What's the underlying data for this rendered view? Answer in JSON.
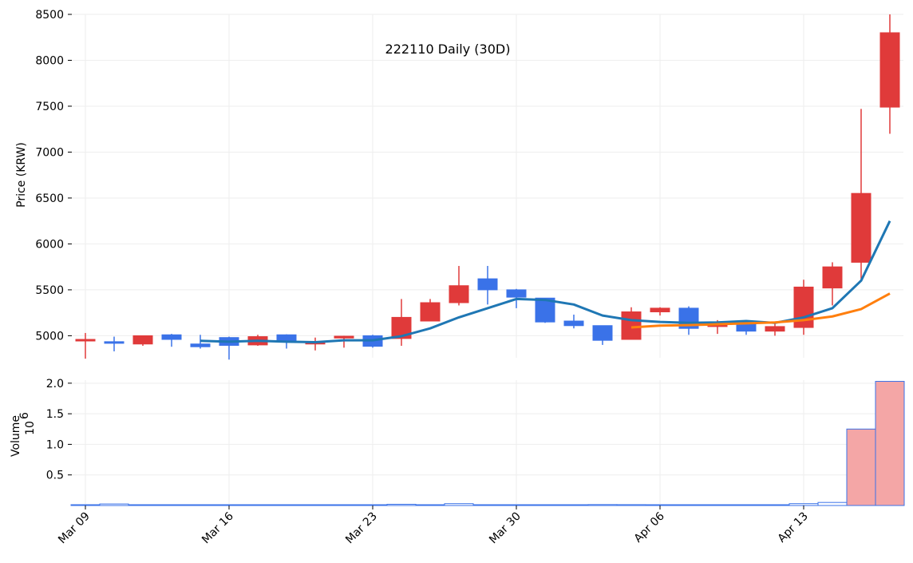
{
  "chart_data": {
    "type": "candlestick",
    "title": "222110 Daily (30D)",
    "ylabel": "Price (KRW)",
    "volume_label": "Volume",
    "volume_multiplier_label": "10",
    "volume_multiplier_exp": "6",
    "ylim": [
      4760,
      8500
    ],
    "volume_ylim": [
      0,
      2.05
    ],
    "price_ticks": [
      "5000",
      "5500",
      "6000",
      "6500",
      "7000",
      "7500",
      "8000",
      "8500"
    ],
    "volume_ticks": [
      "0.5",
      "1.0",
      "1.5",
      "2.0"
    ],
    "x_tick_labels": [
      "Mar 09",
      "Mar 16",
      "Mar 23",
      "Mar 30",
      "Apr 06",
      "Apr 13"
    ],
    "x_tick_index": [
      0,
      5,
      10,
      15,
      20,
      25
    ],
    "colors": {
      "up": "#e03a3a",
      "down": "#3a72e8",
      "ma5": "#1f77b4",
      "ma20": "#ff7f0e",
      "volume_last": "#f4a6a6",
      "grid": "#eeeeee"
    },
    "candles": [
      {
        "date": "Mar 09",
        "o": 4950,
        "h": 5030,
        "l": 4750,
        "c": 4960,
        "v": 0.01
      },
      {
        "date": "Mar 10",
        "o": 4935,
        "h": 4990,
        "l": 4830,
        "c": 4920,
        "v": 0.025
      },
      {
        "date": "Mar 11",
        "o": 4910,
        "h": 5000,
        "l": 4890,
        "c": 5000,
        "v": 0.008
      },
      {
        "date": "Mar 12",
        "o": 5010,
        "h": 5020,
        "l": 4880,
        "c": 4960,
        "v": 0.007
      },
      {
        "date": "Mar 13",
        "o": 4910,
        "h": 5010,
        "l": 4860,
        "c": 4880,
        "v": 0.006
      },
      {
        "date": "Mar 16",
        "o": 4980,
        "h": 4990,
        "l": 4740,
        "c": 4895,
        "v": 0.012
      },
      {
        "date": "Mar 17",
        "o": 4900,
        "h": 5010,
        "l": 4890,
        "c": 4990,
        "v": 0.008
      },
      {
        "date": "Mar 18",
        "o": 5010,
        "h": 5015,
        "l": 4860,
        "c": 4940,
        "v": 0.006
      },
      {
        "date": "Mar 19",
        "o": 4910,
        "h": 4980,
        "l": 4840,
        "c": 4930,
        "v": 0.005
      },
      {
        "date": "Mar 20",
        "o": 4975,
        "h": 5000,
        "l": 4870,
        "c": 4995,
        "v": 0.004
      },
      {
        "date": "Mar 23",
        "o": 5000,
        "h": 5010,
        "l": 4870,
        "c": 4885,
        "v": 0.005
      },
      {
        "date": "Mar 24",
        "o": 4970,
        "h": 5400,
        "l": 4890,
        "c": 5200,
        "v": 0.02
      },
      {
        "date": "Mar 25",
        "o": 5160,
        "h": 5400,
        "l": 5160,
        "c": 5360,
        "v": 0.01
      },
      {
        "date": "Mar 26",
        "o": 5360,
        "h": 5760,
        "l": 5330,
        "c": 5545,
        "v": 0.03
      },
      {
        "date": "Mar 27",
        "o": 5620,
        "h": 5760,
        "l": 5340,
        "c": 5500,
        "v": 0.012
      },
      {
        "date": "Mar 30",
        "o": 5500,
        "h": 5510,
        "l": 5300,
        "c": 5420,
        "v": 0.008
      },
      {
        "date": "Mar 31",
        "o": 5410,
        "h": 5410,
        "l": 5140,
        "c": 5150,
        "v": 0.01
      },
      {
        "date": "Apr 01",
        "o": 5160,
        "h": 5230,
        "l": 5080,
        "c": 5110,
        "v": 0.012
      },
      {
        "date": "Apr 02",
        "o": 5110,
        "h": 5110,
        "l": 4900,
        "c": 4950,
        "v": 0.015
      },
      {
        "date": "Apr 03",
        "o": 4960,
        "h": 5310,
        "l": 4960,
        "c": 5260,
        "v": 0.014
      },
      {
        "date": "Apr 06",
        "o": 5260,
        "h": 5310,
        "l": 5220,
        "c": 5300,
        "v": 0.006
      },
      {
        "date": "Apr 07",
        "o": 5300,
        "h": 5320,
        "l": 5010,
        "c": 5080,
        "v": 0.01
      },
      {
        "date": "Apr 08",
        "o": 5100,
        "h": 5170,
        "l": 5020,
        "c": 5140,
        "v": 0.008
      },
      {
        "date": "Apr 09",
        "o": 5130,
        "h": 5150,
        "l": 5010,
        "c": 5050,
        "v": 0.012
      },
      {
        "date": "Apr 10",
        "o": 5050,
        "h": 5130,
        "l": 5000,
        "c": 5100,
        "v": 0.01
      },
      {
        "date": "Apr 13",
        "o": 5090,
        "h": 5610,
        "l": 5010,
        "c": 5530,
        "v": 0.03
      },
      {
        "date": "Apr 14",
        "o": 5520,
        "h": 5800,
        "l": 5330,
        "c": 5750,
        "v": 0.05
      },
      {
        "date": "Apr 15",
        "o": 5800,
        "h": 7470,
        "l": 5620,
        "c": 6550,
        "v": 1.25
      },
      {
        "date": "Apr 16",
        "o": 7490,
        "h": 8500,
        "l": 7200,
        "c": 8300,
        "v": 2.03
      }
    ],
    "ma5": [
      null,
      null,
      null,
      null,
      4945,
      4935,
      4945,
      4935,
      4930,
      4950,
      4950,
      4995,
      5080,
      5200,
      5300,
      5400,
      5390,
      5340,
      5220,
      5170,
      5150,
      5140,
      5145,
      5160,
      5140,
      5200,
      5300,
      5600,
      6250
    ],
    "ma20": [
      null,
      null,
      null,
      null,
      null,
      null,
      null,
      null,
      null,
      null,
      null,
      null,
      null,
      null,
      null,
      null,
      null,
      null,
      null,
      5090,
      5110,
      5115,
      5125,
      5135,
      5145,
      5170,
      5210,
      5290,
      5460
    ]
  }
}
